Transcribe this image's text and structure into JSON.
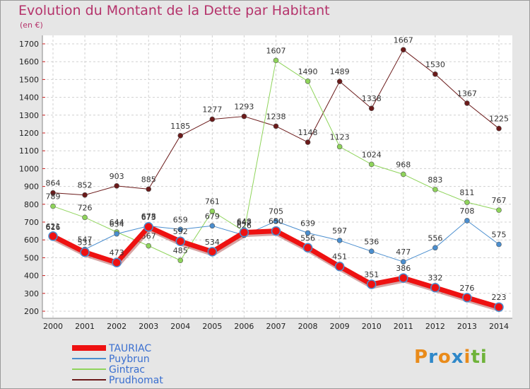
{
  "page": {
    "title": "Evolution du Montant de la Dette par Habitant",
    "subtitle": "(en €)"
  },
  "logo": {
    "letters": [
      "P",
      "r",
      "o",
      "x",
      "i",
      "t",
      "i"
    ],
    "colors": [
      "#e98b1b",
      "#2f88c9",
      "#e98b1b",
      "#2f88c9",
      "#e98b1b",
      "#6fb33a",
      "#6fb33a"
    ]
  },
  "chart_data": {
    "type": "line",
    "title": "Evolution du Montant de la Dette par Habitant",
    "ylabel": "(en €)",
    "xlabel": "",
    "ylim": [
      200,
      1700
    ],
    "yticks": [
      200,
      300,
      400,
      500,
      600,
      700,
      800,
      900,
      1000,
      1100,
      1200,
      1300,
      1400,
      1500,
      1600,
      1700
    ],
    "categories": [
      "2000",
      "2001",
      "2002",
      "2003",
      "2004",
      "2005",
      "2006",
      "2007",
      "2008",
      "2009",
      "2010",
      "2011",
      "2012",
      "2013",
      "2014"
    ],
    "grid": true,
    "legend_position": "bottom-left",
    "series": [
      {
        "name": "Prudhomat",
        "color": "#6b1a1a",
        "width": 1,
        "values": [
          864,
          852,
          903,
          885,
          1185,
          1277,
          1293,
          1238,
          1148,
          1489,
          1338,
          1667,
          1530,
          1367,
          1225
        ]
      },
      {
        "name": "Gintrac",
        "color": "#8fd45b",
        "width": 1,
        "values": [
          789,
          726,
          644,
          567,
          485,
          761,
          648,
          1607,
          1490,
          1123,
          1024,
          968,
          883,
          811,
          767
        ]
      },
      {
        "name": "Puybrun",
        "color": "#4a8ecf",
        "width": 1,
        "values": [
          616,
          547,
          634,
          678,
          659,
          679,
          626,
          705,
          639,
          597,
          536,
          477,
          556,
          708,
          575
        ]
      },
      {
        "name": "TAURIAC",
        "color": "#ee1111",
        "width": 7,
        "values": [
          621,
          531,
          473,
          673,
          592,
          534,
          642,
          650,
          556,
          451,
          351,
          386,
          332,
          276,
          223
        ]
      }
    ],
    "legend_order": [
      "TAURIAC",
      "Puybrun",
      "Gintrac",
      "Prudhomat"
    ]
  }
}
